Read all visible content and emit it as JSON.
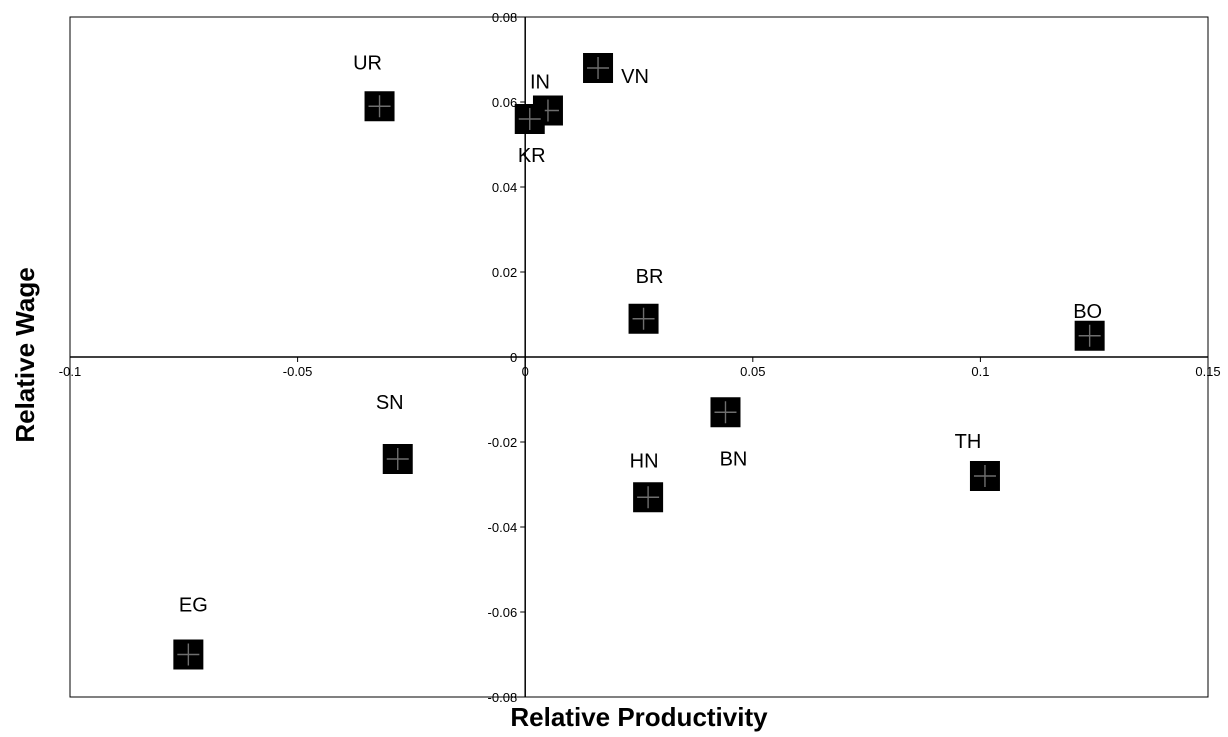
{
  "chart_data": {
    "type": "scatter",
    "xlabel": "Relative Productivity",
    "ylabel": "Relative Wage",
    "xlim": [
      -0.1,
      0.15
    ],
    "ylim": [
      -0.08,
      0.08
    ],
    "x_ticks": [
      {
        "value": -0.1,
        "label": "-0.1"
      },
      {
        "value": -0.05,
        "label": "-0.05"
      },
      {
        "value": 0,
        "label": "0"
      },
      {
        "value": 0.05,
        "label": "0.05"
      },
      {
        "value": 0.1,
        "label": "0.1"
      },
      {
        "value": 0.15,
        "label": "0.15"
      }
    ],
    "y_ticks": [
      {
        "value": 0.08,
        "label": "0.08"
      },
      {
        "value": 0.06,
        "label": "0.06"
      },
      {
        "value": 0.04,
        "label": "0.04"
      },
      {
        "value": 0.02,
        "label": "0.02"
      },
      {
        "value": 0,
        "label": "0"
      },
      {
        "value": -0.02,
        "label": "-0.02"
      },
      {
        "value": -0.04,
        "label": "-0.04"
      },
      {
        "value": -0.06,
        "label": "-0.06"
      },
      {
        "value": -0.08,
        "label": "-0.08"
      }
    ],
    "grid": false,
    "legend": "none",
    "points": [
      {
        "label": "UR",
        "x": -0.032,
        "y": 0.059
      },
      {
        "label": "IN",
        "x": 0.005,
        "y": 0.058
      },
      {
        "label": "KR",
        "x": 0.001,
        "y": 0.056
      },
      {
        "label": "VN",
        "x": 0.016,
        "y": 0.068
      },
      {
        "label": "BR",
        "x": 0.026,
        "y": 0.009
      },
      {
        "label": "BO",
        "x": 0.124,
        "y": 0.005
      },
      {
        "label": "SN",
        "x": -0.028,
        "y": -0.024
      },
      {
        "label": "BN",
        "x": 0.044,
        "y": -0.013
      },
      {
        "label": "HN",
        "x": 0.027,
        "y": -0.033
      },
      {
        "label": "TH",
        "x": 0.101,
        "y": -0.028
      },
      {
        "label": "EG",
        "x": -0.074,
        "y": -0.07
      }
    ]
  }
}
